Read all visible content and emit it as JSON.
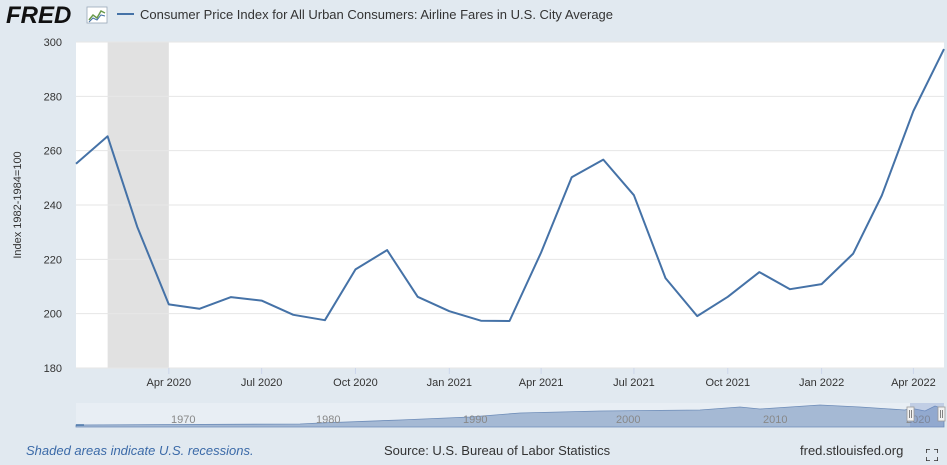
{
  "header": {
    "logo_text": "FRED",
    "legend_label": "Consumer Price Index for All Urban Consumers: Airline Fares in U.S. City Average"
  },
  "footer": {
    "recession_note": "Shaded areas indicate U.S. recessions.",
    "source": "Source: U.S. Bureau of Labor Statistics",
    "site": "fred.stlouisfed.org"
  },
  "colors": {
    "series": "#4572a7",
    "background": "#e1e9f0",
    "plot": "#ffffff",
    "recession": "#e1e1e1",
    "grid": "#e6e6e6",
    "navigator_fill": "#a5b9d4"
  },
  "icons": [
    "fred-logo-chart-icon",
    "fullscreen-icon",
    "navigator-handle-icon"
  ],
  "chart_data": {
    "type": "line",
    "title": "",
    "ylabel": "Index 1982-1984=100",
    "xlabel": "",
    "ylim": [
      180,
      300
    ],
    "yticks": [
      "180",
      "200",
      "220",
      "240",
      "260",
      "280",
      "300"
    ],
    "xticks": [
      {
        "date": "2020-04-01",
        "label": "Apr 2020"
      },
      {
        "date": "2020-07-01",
        "label": "Jul 2020"
      },
      {
        "date": "2020-10-01",
        "label": "Oct 2020"
      },
      {
        "date": "2021-01-01",
        "label": "Jan 2021"
      },
      {
        "date": "2021-04-01",
        "label": "Apr 2021"
      },
      {
        "date": "2021-07-01",
        "label": "Jul 2021"
      },
      {
        "date": "2021-10-01",
        "label": "Oct 2021"
      },
      {
        "date": "2022-01-01",
        "label": "Jan 2022"
      },
      {
        "date": "2022-04-01",
        "label": "Apr 2022"
      }
    ],
    "xrange": [
      "2020-01-01",
      "2022-05-01"
    ],
    "grid": true,
    "recession": {
      "start": "2020-02-01",
      "end": "2020-04-01"
    },
    "series": [
      {
        "name": "Consumer Price Index for All Urban Consumers: Airline Fares in U.S. City Average",
        "x": [
          "2020-01-01",
          "2020-02-01",
          "2020-03-01",
          "2020-04-01",
          "2020-05-01",
          "2020-06-01",
          "2020-07-01",
          "2020-08-01",
          "2020-09-01",
          "2020-10-01",
          "2020-11-01",
          "2020-12-01",
          "2021-01-01",
          "2021-02-01",
          "2021-03-01",
          "2021-04-01",
          "2021-05-01",
          "2021-06-01",
          "2021-07-01",
          "2021-08-01",
          "2021-09-01",
          "2021-10-01",
          "2021-11-01",
          "2021-12-01",
          "2022-01-01",
          "2022-02-01",
          "2022-03-01",
          "2022-04-01",
          "2022-05-01"
        ],
        "values": [
          255.2,
          265.3,
          232.0,
          203.4,
          201.8,
          206.1,
          204.8,
          199.6,
          197.6,
          216.3,
          223.4,
          206.2,
          200.9,
          197.4,
          197.3,
          222.5,
          250.2,
          256.7,
          243.6,
          213.1,
          199.1,
          206.2,
          215.3,
          209.0,
          210.9,
          222.1,
          243.5,
          274.6,
          297.4
        ]
      }
    ],
    "navigator": {
      "labels": [
        "1970",
        "1980",
        "1990",
        "2000",
        "2010",
        "2020"
      ]
    }
  }
}
